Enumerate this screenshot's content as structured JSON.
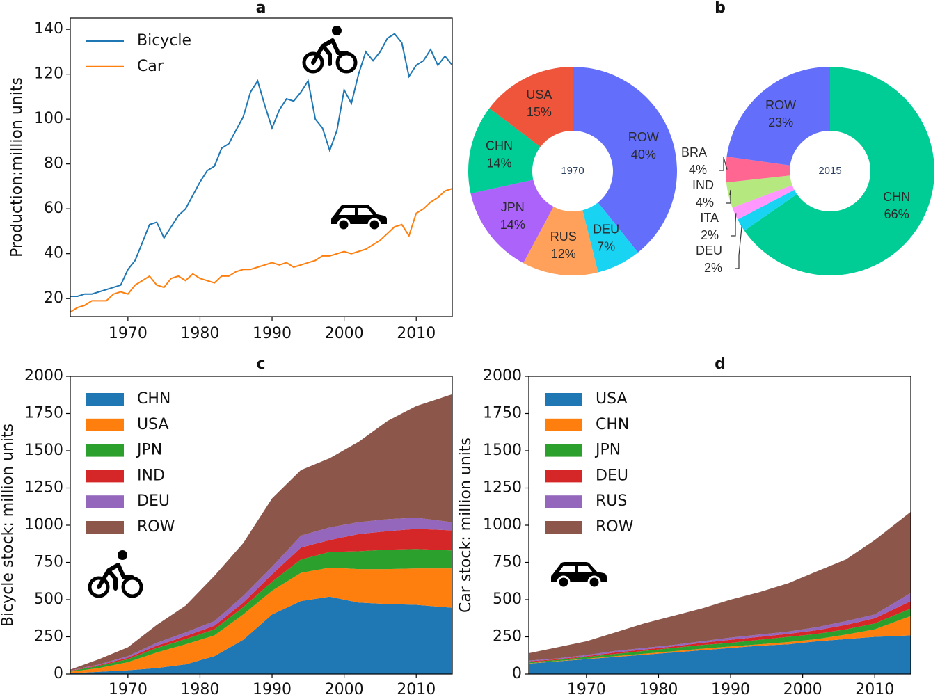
{
  "chart_data": [
    {
      "type": "line",
      "title": "a",
      "y_label": "Production:million units",
      "x": [
        1962,
        1963,
        1964,
        1965,
        1966,
        1967,
        1968,
        1969,
        1970,
        1971,
        1972,
        1973,
        1974,
        1975,
        1976,
        1977,
        1978,
        1979,
        1980,
        1981,
        1982,
        1983,
        1984,
        1985,
        1986,
        1987,
        1988,
        1989,
        1990,
        1991,
        1992,
        1993,
        1994,
        1995,
        1996,
        1997,
        1998,
        1999,
        2000,
        2001,
        2002,
        2003,
        2004,
        2005,
        2006,
        2007,
        2008,
        2009,
        2010,
        2011,
        2012,
        2013,
        2014,
        2015
      ],
      "series": [
        {
          "name": "Bicycle",
          "color": "#1f77b4",
          "values": [
            21,
            21,
            22,
            22,
            23,
            24,
            25,
            26,
            33,
            37,
            45,
            53,
            54,
            47,
            52,
            57,
            60,
            66,
            72,
            77,
            79,
            87,
            89,
            95,
            101,
            112,
            117,
            106,
            96,
            104,
            109,
            108,
            112,
            117,
            100,
            96,
            86,
            95,
            113,
            107,
            120,
            130,
            126,
            130,
            136,
            138,
            134,
            119,
            124,
            126,
            131,
            124,
            128,
            124
          ]
        },
        {
          "name": "Car",
          "color": "#ff7f0e",
          "values": [
            14,
            16,
            17,
            19,
            19,
            19,
            22,
            23,
            22,
            26,
            28,
            30,
            26,
            25,
            29,
            30,
            28,
            31,
            29,
            28,
            27,
            30,
            30,
            32,
            33,
            33,
            34,
            35,
            36,
            35,
            36,
            34,
            35,
            36,
            37,
            39,
            39,
            40,
            41,
            40,
            41,
            42,
            44,
            46,
            49,
            52,
            53,
            48,
            58,
            60,
            63,
            65,
            68,
            69
          ]
        }
      ],
      "xlim": [
        1962,
        2015
      ],
      "xticks": [
        1970,
        1980,
        1990,
        2000,
        2010
      ],
      "ylim": [
        12,
        145
      ],
      "yticks": [
        20,
        40,
        60,
        80,
        100,
        120,
        140
      ],
      "legend": "upper left"
    },
    {
      "type": "donut",
      "title": "b",
      "pies": [
        {
          "center_label": "1970",
          "categories": [
            "ROW",
            "DEU",
            "RUS",
            "JPN",
            "CHN",
            "USA"
          ],
          "values": [
            40,
            7,
            12,
            14,
            14,
            15
          ],
          "value_labels": [
            "40%",
            "7%",
            "12%",
            "14%",
            "14%",
            "15%"
          ],
          "colors": [
            "#636efa",
            "#19d3f3",
            "#ffa15a",
            "#ab63fa",
            "#00cc96",
            "#ef553b"
          ]
        },
        {
          "center_label": "2015",
          "categories": [
            "CHN",
            "DEU",
            "ITA",
            "IND",
            "BRA",
            "ROW"
          ],
          "values": [
            66,
            2,
            2,
            4,
            4,
            23
          ],
          "value_labels": [
            "66%",
            "2%",
            "2%",
            "4%",
            "4%",
            "23%"
          ],
          "colors": [
            "#00cc96",
            "#19d3f3",
            "#ff97ff",
            "#b6e880",
            "#ff6692",
            "#636efa"
          ]
        }
      ]
    },
    {
      "type": "stacked_area",
      "title": "c",
      "y_label": "Bicycle stock: million units",
      "x": [
        1962,
        1966,
        1970,
        1974,
        1978,
        1982,
        1986,
        1990,
        1994,
        1998,
        2002,
        2006,
        2010,
        2015
      ],
      "series": [
        {
          "name": "CHN",
          "color": "#1f77b4",
          "values": [
            5,
            15,
            25,
            40,
            65,
            120,
            230,
            400,
            490,
            520,
            480,
            470,
            465,
            445
          ]
        },
        {
          "name": "USA",
          "color": "#ff7f0e",
          "values": [
            10,
            25,
            55,
            105,
            135,
            140,
            170,
            160,
            190,
            195,
            225,
            235,
            245,
            265
          ]
        },
        {
          "name": "JPN",
          "color": "#2ca02c",
          "values": [
            5,
            15,
            20,
            30,
            35,
            40,
            50,
            60,
            90,
            105,
            120,
            130,
            130,
            120
          ]
        },
        {
          "name": "IND",
          "color": "#d62728",
          "values": [
            2,
            5,
            10,
            15,
            20,
            25,
            30,
            50,
            80,
            80,
            115,
            125,
            135,
            135
          ]
        },
        {
          "name": "DEU",
          "color": "#9467bd",
          "values": [
            2,
            5,
            10,
            20,
            25,
            30,
            45,
            50,
            80,
            85,
            80,
            80,
            75,
            55
          ]
        },
        {
          "name": "ROW",
          "color": "#8c564b",
          "values": [
            6,
            35,
            60,
            120,
            180,
            305,
            355,
            460,
            440,
            465,
            540,
            660,
            750,
            860
          ]
        }
      ],
      "xlim": [
        1962,
        2015
      ],
      "xticks": [
        1970,
        1980,
        1990,
        2000,
        2010
      ],
      "ylim": [
        0,
        2000
      ],
      "yticks": [
        0,
        250,
        500,
        750,
        1000,
        1250,
        1500,
        1750,
        2000
      ],
      "legend": "upper left"
    },
    {
      "type": "stacked_area",
      "title": "d",
      "y_label": "Car stock: million units",
      "x": [
        1962,
        1966,
        1970,
        1974,
        1978,
        1982,
        1986,
        1990,
        1994,
        1998,
        2002,
        2006,
        2010,
        2015
      ],
      "series": [
        {
          "name": "USA",
          "color": "#1f77b4",
          "values": [
            70,
            85,
            100,
            115,
            130,
            145,
            160,
            175,
            190,
            200,
            220,
            235,
            250,
            260
          ]
        },
        {
          "name": "CHN",
          "color": "#ff7f0e",
          "values": [
            2,
            3,
            3,
            5,
            7,
            8,
            10,
            10,
            10,
            15,
            15,
            30,
            50,
            130
          ]
        },
        {
          "name": "JPN",
          "color": "#2ca02c",
          "values": [
            8,
            7,
            12,
            15,
            18,
            22,
            25,
            25,
            30,
            35,
            35,
            35,
            40,
            50
          ]
        },
        {
          "name": "DEU",
          "color": "#d62728",
          "values": [
            5,
            5,
            5,
            10,
            10,
            10,
            15,
            20,
            20,
            20,
            25,
            30,
            35,
            50
          ]
        },
        {
          "name": "RUS",
          "color": "#9467bd",
          "values": [
            5,
            5,
            8,
            10,
            10,
            10,
            10,
            15,
            15,
            15,
            20,
            25,
            25,
            55
          ]
        },
        {
          "name": "ROW",
          "color": "#8c564b",
          "values": [
            50,
            75,
            92,
            125,
            165,
            195,
            220,
            255,
            285,
            325,
            375,
            415,
            500,
            545
          ]
        }
      ],
      "xlim": [
        1962,
        2015
      ],
      "xticks": [
        1970,
        1980,
        1990,
        2000,
        2010
      ],
      "ylim": [
        0,
        2000
      ],
      "yticks": [
        0,
        250,
        500,
        750,
        1000,
        1250,
        1500,
        1750,
        2000
      ],
      "legend": "upper left"
    }
  ]
}
